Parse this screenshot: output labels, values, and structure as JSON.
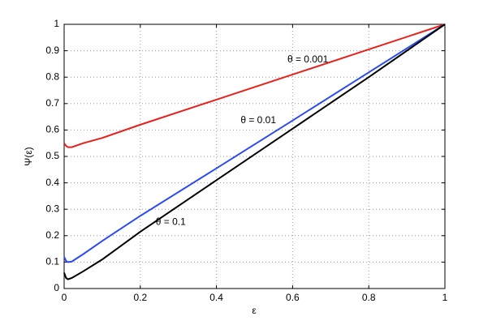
{
  "chart_data": {
    "type": "line",
    "xlabel": "ε",
    "ylabel": "Ψ(ε)",
    "x": [
      0,
      0.005,
      0.01,
      0.02,
      0.05,
      0.1,
      0.2,
      0.4,
      0.6,
      0.8,
      1
    ],
    "series": [
      {
        "name": "θ = 0.001",
        "color": "#e8201c",
        "values": [
          0.55,
          0.54,
          0.535,
          0.535,
          0.55,
          0.57,
          0.62,
          0.715,
          0.81,
          0.905,
          1
        ]
      },
      {
        "name": "θ = 0.01",
        "color": "#2a4bf0",
        "values": [
          0.12,
          0.105,
          0.1,
          0.102,
          0.13,
          0.18,
          0.275,
          0.455,
          0.636,
          0.818,
          1
        ]
      },
      {
        "name": "θ = 0.1",
        "color": "#000000",
        "values": [
          0.06,
          0.04,
          0.035,
          0.04,
          0.065,
          0.11,
          0.215,
          0.41,
          0.605,
          0.8,
          1
        ]
      }
    ],
    "xlim": [
      0,
      1
    ],
    "ylim": [
      0,
      1
    ],
    "xticks": [
      0,
      0.2,
      0.4,
      0.6,
      0.8,
      1
    ],
    "yticks": [
      0,
      0.1,
      0.2,
      0.3,
      0.4,
      0.5,
      0.6,
      0.7,
      0.8,
      0.9,
      1
    ],
    "grid": true
  }
}
